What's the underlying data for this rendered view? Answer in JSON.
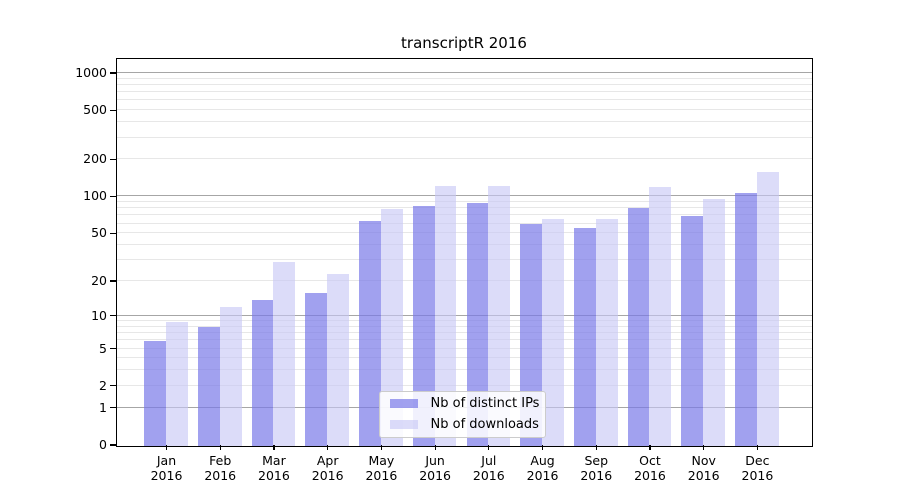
{
  "title": "transcriptR 2016",
  "chart_data": {
    "type": "bar",
    "title": "transcriptR 2016",
    "categories": [
      "Jan",
      "Feb",
      "Mar",
      "Apr",
      "May",
      "Jun",
      "Jul",
      "Aug",
      "Sep",
      "Oct",
      "Nov",
      "Dec"
    ],
    "year_label": "2016",
    "series": [
      {
        "name": "Nb of distinct IPs",
        "color": "#a2a2ee",
        "fill": "rgba(121,121,232,0.70)",
        "values": [
          6,
          8,
          14,
          16,
          64,
          85,
          90,
          60,
          56,
          82,
          70,
          107
        ]
      },
      {
        "name": "Nb of downloads",
        "color": "#dadaf8",
        "fill": "rgba(199,199,245,0.62)",
        "values": [
          9,
          12,
          29,
          23,
          80,
          124,
          122,
          66,
          66,
          120,
          97,
          160
        ]
      }
    ],
    "yscale": "log10(1+x)",
    "ylim": [
      0,
      1296
    ],
    "y_tick_labels": [
      "1000",
      "500",
      "200",
      "100",
      "50",
      "20",
      "10",
      "5",
      "2",
      "1",
      "0"
    ],
    "y_tick_values": [
      1000,
      500,
      200,
      100,
      50,
      20,
      10,
      5,
      2,
      1,
      0
    ],
    "y_major_gridlines": [
      1,
      10,
      100,
      1000
    ],
    "xlabel": "",
    "ylabel": "",
    "grid": true,
    "legend": {
      "position": "lower-center",
      "labels": [
        "Nb of distinct IPs",
        "Nb of downloads"
      ]
    }
  },
  "colors": {
    "bar_dark": "#a2a2ee",
    "bar_light": "#dadaf8",
    "grid_major": "#a6a6a6",
    "grid_minor": "#e7e7e7",
    "spine": "#000000",
    "background": "#ffffff"
  }
}
